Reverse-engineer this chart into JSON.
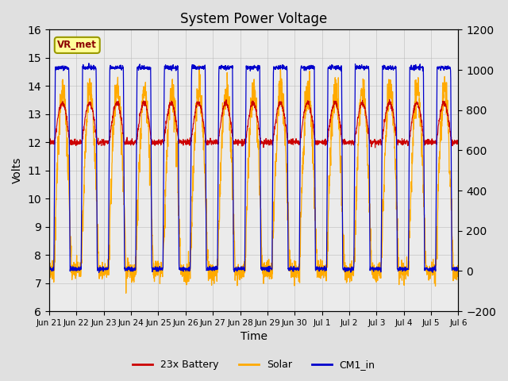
{
  "title": "System Power Voltage",
  "ylabel_left": "Volts",
  "xlabel": "Time",
  "ylim_left": [
    6.0,
    16.0
  ],
  "ylim_right": [
    -200,
    1200
  ],
  "yticks_left": [
    6.0,
    7.0,
    8.0,
    9.0,
    10.0,
    11.0,
    12.0,
    13.0,
    14.0,
    15.0,
    16.0
  ],
  "yticks_right": [
    -200,
    0,
    200,
    400,
    600,
    800,
    1000,
    1200
  ],
  "bg_color": "#e0e0e0",
  "plot_bg_color": "#ebebeb",
  "legend_items": [
    "23x Battery",
    "Solar",
    "CM1_in"
  ],
  "legend_colors": [
    "#cc0000",
    "#ffaa00",
    "#0000cc"
  ],
  "annotation_text": "VR_met",
  "annotation_box_color": "#ffff99",
  "annotation_box_edge": "#999900",
  "x_tick_labels": [
    "Jun 21",
    "Jun 22",
    "Jun 23",
    "Jun 24",
    "Jun 25",
    "Jun 26",
    "Jun 27",
    "Jun 28",
    "Jun 29",
    "Jun 30",
    "Jul 1",
    "Jul 2",
    "Jul 3",
    "Jul 4",
    "Jul 5",
    "Jul 6"
  ],
  "x_tick_positions": [
    0,
    1,
    2,
    3,
    4,
    5,
    6,
    7,
    8,
    9,
    10,
    11,
    12,
    13,
    14,
    15
  ],
  "xlim": [
    0,
    15
  ],
  "n_days": 15
}
